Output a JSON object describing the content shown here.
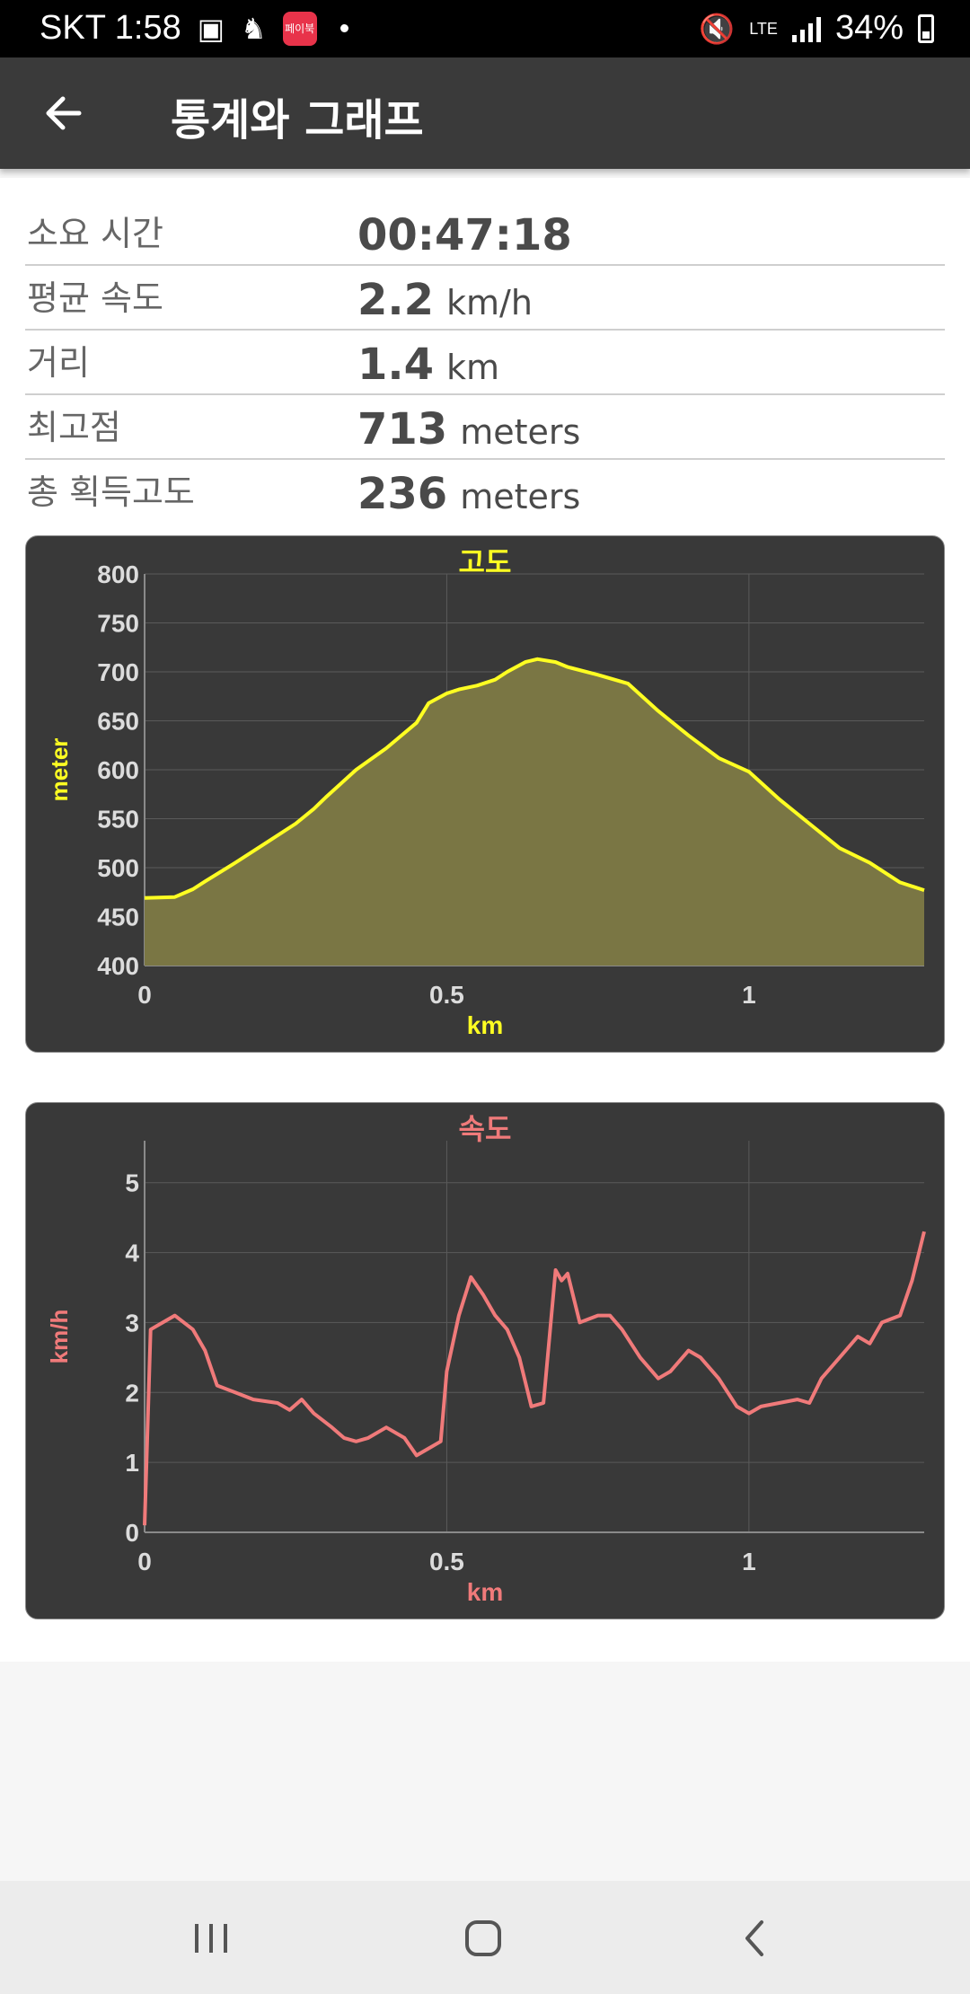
{
  "status_bar": {
    "carrier_time": "SKT 1:58",
    "battery": "34%",
    "network": "LTE",
    "pay_badge": "페이북",
    "icons": [
      "gallery-icon",
      "notification-icon",
      "pay-app-icon",
      "mute-icon",
      "lte-icon",
      "signal-icon",
      "battery-icon"
    ]
  },
  "app_bar": {
    "title": "통계와 그래프",
    "back_icon": "arrow-left-icon"
  },
  "stats": [
    {
      "label": "소요 시간",
      "value": "00:47:18",
      "unit": ""
    },
    {
      "label": "평균 속도",
      "value": "2.2",
      "unit": "km/h"
    },
    {
      "label": "거리",
      "value": "1.4",
      "unit": "km"
    },
    {
      "label": "최고점",
      "value": "713",
      "unit": "meters"
    },
    {
      "label": "총 획득고도",
      "value": "236",
      "unit": "meters"
    }
  ],
  "chart_data": [
    {
      "type": "area",
      "title": "고도",
      "xlabel": "km",
      "ylabel": "meter",
      "xlim": [
        0,
        1.29
      ],
      "ylim": [
        400,
        800
      ],
      "yticks": [
        "400",
        "450",
        "500",
        "550",
        "600",
        "650",
        "700",
        "750",
        "800"
      ],
      "xticks": [
        "0",
        "0.5",
        "1"
      ],
      "grid": true,
      "line_color": "#ffff22",
      "fill_color": "#7a7644",
      "x": [
        0,
        0.05,
        0.08,
        0.1,
        0.15,
        0.2,
        0.25,
        0.28,
        0.3,
        0.35,
        0.4,
        0.45,
        0.47,
        0.5,
        0.52,
        0.55,
        0.58,
        0.6,
        0.63,
        0.65,
        0.68,
        0.7,
        0.75,
        0.8,
        0.85,
        0.9,
        0.95,
        1.0,
        1.05,
        1.1,
        1.15,
        1.2,
        1.25,
        1.29
      ],
      "y": [
        469,
        470,
        478,
        486,
        505,
        525,
        545,
        560,
        572,
        600,
        622,
        648,
        668,
        678,
        682,
        686,
        692,
        700,
        710,
        713,
        710,
        705,
        697,
        688,
        660,
        635,
        612,
        598,
        570,
        545,
        520,
        505,
        485,
        477
      ]
    },
    {
      "type": "line",
      "title": "속도",
      "xlabel": "km",
      "ylabel": "km/h",
      "xlim": [
        0,
        1.29
      ],
      "ylim": [
        0,
        5.6
      ],
      "yticks": [
        "0",
        "1",
        "2",
        "3",
        "4",
        "5"
      ],
      "xticks": [
        "0",
        "0.5",
        "1"
      ],
      "grid": true,
      "line_color": "#f07a7a",
      "x": [
        0,
        0.01,
        0.03,
        0.05,
        0.08,
        0.1,
        0.12,
        0.15,
        0.18,
        0.22,
        0.24,
        0.26,
        0.28,
        0.31,
        0.33,
        0.35,
        0.37,
        0.4,
        0.43,
        0.45,
        0.47,
        0.49,
        0.5,
        0.52,
        0.54,
        0.56,
        0.58,
        0.6,
        0.62,
        0.64,
        0.66,
        0.68,
        0.69,
        0.7,
        0.72,
        0.75,
        0.77,
        0.79,
        0.82,
        0.85,
        0.87,
        0.9,
        0.92,
        0.95,
        0.98,
        1.0,
        1.02,
        1.05,
        1.08,
        1.1,
        1.12,
        1.15,
        1.18,
        1.2,
        1.22,
        1.25,
        1.27,
        1.29
      ],
      "y": [
        0.1,
        2.9,
        3.0,
        3.1,
        2.9,
        2.6,
        2.1,
        2.0,
        1.9,
        1.85,
        1.75,
        1.9,
        1.7,
        1.5,
        1.35,
        1.3,
        1.35,
        1.5,
        1.35,
        1.1,
        1.2,
        1.3,
        2.3,
        3.1,
        3.65,
        3.4,
        3.1,
        2.9,
        2.5,
        1.8,
        1.85,
        3.75,
        3.6,
        3.7,
        3.0,
        3.1,
        3.1,
        2.9,
        2.5,
        2.2,
        2.3,
        2.6,
        2.5,
        2.2,
        1.8,
        1.7,
        1.8,
        1.85,
        1.9,
        1.85,
        2.2,
        2.5,
        2.8,
        2.7,
        3.0,
        3.1,
        3.6,
        4.3
      ]
    }
  ],
  "nav_bar": {
    "icons": [
      "recent-apps-icon",
      "home-icon",
      "back-nav-icon"
    ]
  }
}
